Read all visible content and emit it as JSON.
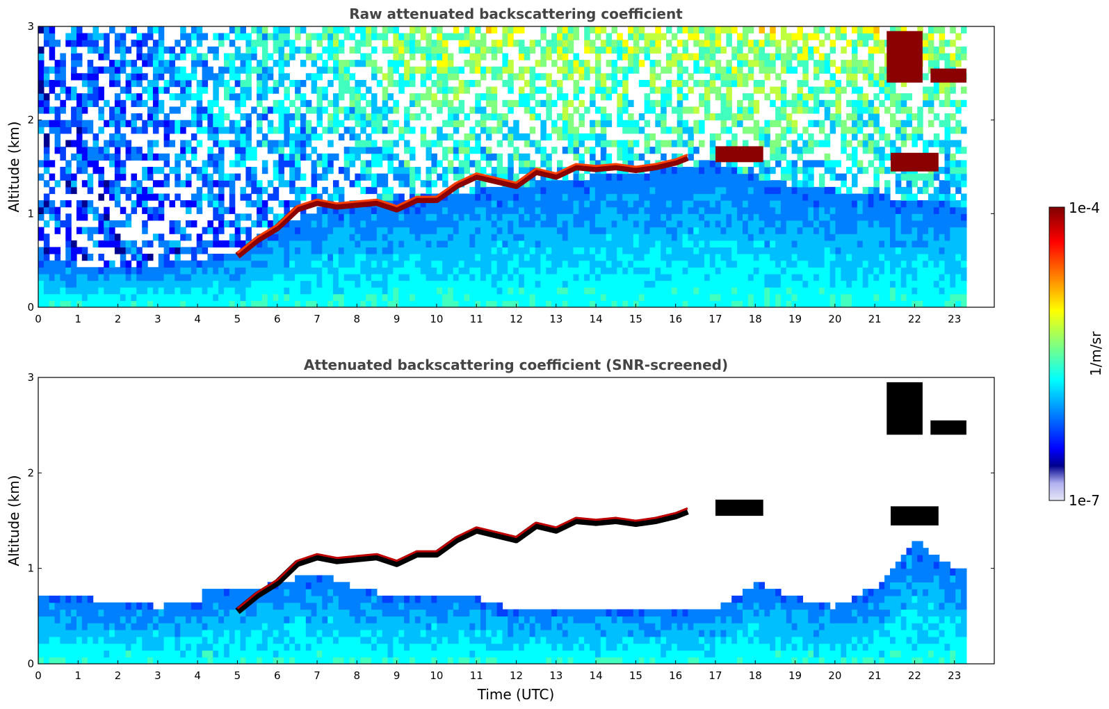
{
  "chart_data": [
    {
      "type": "heatmap",
      "title": "Raw attenuated backscattering coefficient",
      "xlabel": "",
      "ylabel": "Altitude (km)",
      "xlim": [
        0,
        24
      ],
      "ylim": [
        0,
        3
      ],
      "xticks": [
        "0",
        "1",
        "2",
        "3",
        "4",
        "5",
        "6",
        "7",
        "8",
        "9",
        "10",
        "11",
        "12",
        "13",
        "14",
        "15",
        "16",
        "17",
        "18",
        "19",
        "20",
        "21",
        "22",
        "23"
      ],
      "yticks": [
        "0",
        "1",
        "2",
        "3"
      ],
      "data_end_hour": 23.3,
      "boundary_layer_top_km": [
        [
          0,
          0.48
        ],
        [
          1,
          0.45
        ],
        [
          2,
          0.44
        ],
        [
          3,
          0.46
        ],
        [
          4,
          0.5
        ],
        [
          5,
          0.6
        ],
        [
          6,
          0.85
        ],
        [
          7,
          1.05
        ],
        [
          8,
          1.1
        ],
        [
          9,
          1.15
        ],
        [
          10,
          1.2
        ],
        [
          11,
          1.25
        ],
        [
          12,
          1.3
        ],
        [
          13,
          1.35
        ],
        [
          14,
          1.4
        ],
        [
          15,
          1.45
        ],
        [
          16,
          1.5
        ],
        [
          17,
          1.55
        ],
        [
          18,
          1.4
        ],
        [
          19,
          1.3
        ],
        [
          20,
          1.25
        ],
        [
          21,
          1.2
        ],
        [
          22,
          1.15
        ],
        [
          23,
          1.1
        ]
      ],
      "cloud_layer_km": [
        [
          5,
          0.55
        ],
        [
          5.5,
          0.72
        ],
        [
          6,
          0.85
        ],
        [
          6.5,
          1.05
        ],
        [
          7,
          1.12
        ],
        [
          7.5,
          1.08
        ],
        [
          8,
          1.1
        ],
        [
          8.5,
          1.12
        ],
        [
          9,
          1.05
        ],
        [
          9.5,
          1.15
        ],
        [
          10,
          1.15
        ],
        [
          10.5,
          1.3
        ],
        [
          11,
          1.4
        ],
        [
          11.5,
          1.35
        ],
        [
          12,
          1.3
        ],
        [
          12.5,
          1.45
        ],
        [
          13,
          1.4
        ],
        [
          13.5,
          1.5
        ],
        [
          14,
          1.48
        ],
        [
          14.5,
          1.5
        ],
        [
          15,
          1.47
        ],
        [
          15.5,
          1.5
        ],
        [
          16,
          1.55
        ],
        [
          16.3,
          1.6
        ]
      ],
      "cloud_patches_km": [
        [
          17,
          18.2,
          1.55,
          1.72
        ],
        [
          21.4,
          22.6,
          1.45,
          1.65
        ],
        [
          21.3,
          22.2,
          2.4,
          2.95
        ],
        [
          22.4,
          23.3,
          2.4,
          2.55
        ]
      ],
      "colorbar": {
        "min": "1e-7",
        "max": "1e-4",
        "label": "1/m/sr"
      }
    },
    {
      "type": "heatmap",
      "title": "Attenuated backscattering coefficient (SNR-screened)",
      "xlabel": "Time (UTC)",
      "ylabel": "Altitude (km)",
      "xlim": [
        0,
        24
      ],
      "ylim": [
        0,
        3
      ],
      "xticks": [
        "0",
        "1",
        "2",
        "3",
        "4",
        "5",
        "6",
        "7",
        "8",
        "9",
        "10",
        "11",
        "12",
        "13",
        "14",
        "15",
        "16",
        "17",
        "18",
        "19",
        "20",
        "21",
        "22",
        "23"
      ],
      "yticks": [
        "0",
        "1",
        "2",
        "3"
      ],
      "data_end_hour": 23.3,
      "screened_top_km": [
        [
          0,
          0.75
        ],
        [
          1,
          0.7
        ],
        [
          2,
          0.65
        ],
        [
          3,
          0.6
        ],
        [
          4,
          0.65
        ],
        [
          4.2,
          0.78
        ],
        [
          5,
          0.75
        ],
        [
          6,
          0.85
        ],
        [
          7,
          0.95
        ],
        [
          8,
          0.8
        ],
        [
          9,
          0.7
        ],
        [
          10,
          0.75
        ],
        [
          11,
          0.7
        ],
        [
          12,
          0.55
        ],
        [
          13,
          0.6
        ],
        [
          14,
          0.55
        ],
        [
          15,
          0.6
        ],
        [
          16,
          0.55
        ],
        [
          17,
          0.58
        ],
        [
          18,
          0.85
        ],
        [
          19,
          0.7
        ],
        [
          20,
          0.6
        ],
        [
          21,
          0.8
        ],
        [
          22,
          1.3
        ],
        [
          23,
          1.0
        ]
      ],
      "cloud_layer_km": [
        [
          5,
          0.55
        ],
        [
          5.5,
          0.72
        ],
        [
          6,
          0.85
        ],
        [
          6.5,
          1.05
        ],
        [
          7,
          1.12
        ],
        [
          7.5,
          1.08
        ],
        [
          8,
          1.1
        ],
        [
          8.5,
          1.12
        ],
        [
          9,
          1.05
        ],
        [
          9.5,
          1.15
        ],
        [
          10,
          1.15
        ],
        [
          10.5,
          1.3
        ],
        [
          11,
          1.4
        ],
        [
          11.5,
          1.35
        ],
        [
          12,
          1.3
        ],
        [
          12.5,
          1.45
        ],
        [
          13,
          1.4
        ],
        [
          13.5,
          1.5
        ],
        [
          14,
          1.48
        ],
        [
          14.5,
          1.5
        ],
        [
          15,
          1.47
        ],
        [
          15.5,
          1.5
        ],
        [
          16,
          1.55
        ],
        [
          16.3,
          1.6
        ]
      ],
      "cloud_patches_km": [
        [
          17,
          18.2,
          1.55,
          1.72
        ],
        [
          21.4,
          22.6,
          1.45,
          1.65
        ],
        [
          21.3,
          22.2,
          2.4,
          2.95
        ],
        [
          22.4,
          23.3,
          2.4,
          2.55
        ]
      ],
      "colorbar": {
        "min": "1e-7",
        "max": "1e-4",
        "label": "1/m/sr"
      }
    }
  ],
  "colors": {
    "jet": [
      "#00008f",
      "#0000ff",
      "#0040ff",
      "#0080ff",
      "#00bfff",
      "#00ffff",
      "#40ffbf",
      "#80ff80",
      "#bfff40",
      "#ffff00",
      "#ffbf00",
      "#ff8000",
      "#ff4000",
      "#ff0000",
      "#bf0000",
      "#800000"
    ],
    "cloud_dark": "#8b0000",
    "cloud_black": "#000000"
  }
}
